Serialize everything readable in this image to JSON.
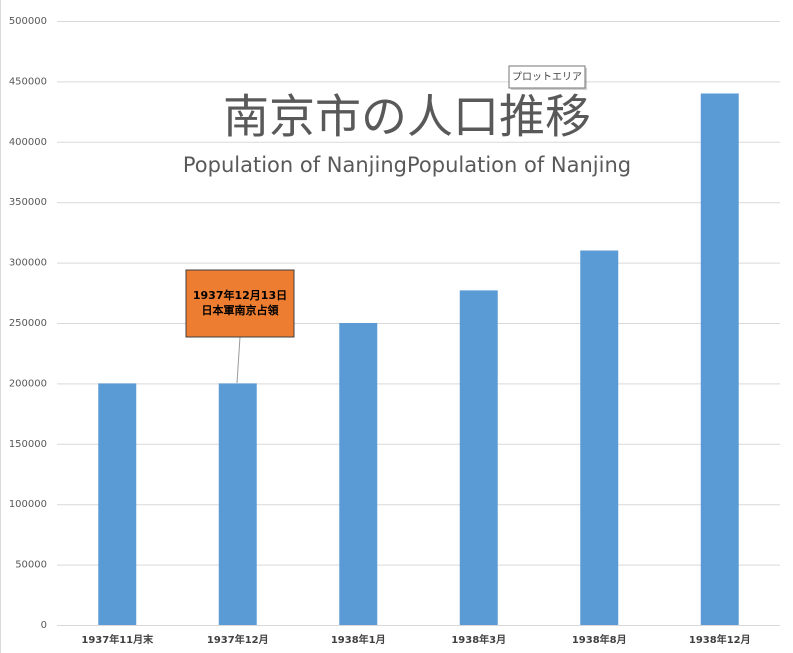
{
  "chart_data": {
    "type": "bar",
    "title": "南京市の人口推移",
    "subtitle": "Population of NanjingPopulation of Nanjing",
    "categories": [
      "1937年11月末",
      "1937年12月",
      "1938年1月",
      "1938年3月",
      "1938年8月",
      "1938年12月"
    ],
    "values": [
      200000,
      200000,
      250000,
      277000,
      310000,
      440000
    ],
    "color": "#5b9bd5",
    "ylim": [
      0,
      500000
    ],
    "yticks": [
      0,
      50000,
      100000,
      150000,
      200000,
      250000,
      300000,
      350000,
      400000,
      450000,
      500000
    ],
    "grid": true,
    "annotation": [
      "1937年12月13日",
      "日本軍南京占領"
    ],
    "tooltip": "プロットエリア"
  }
}
